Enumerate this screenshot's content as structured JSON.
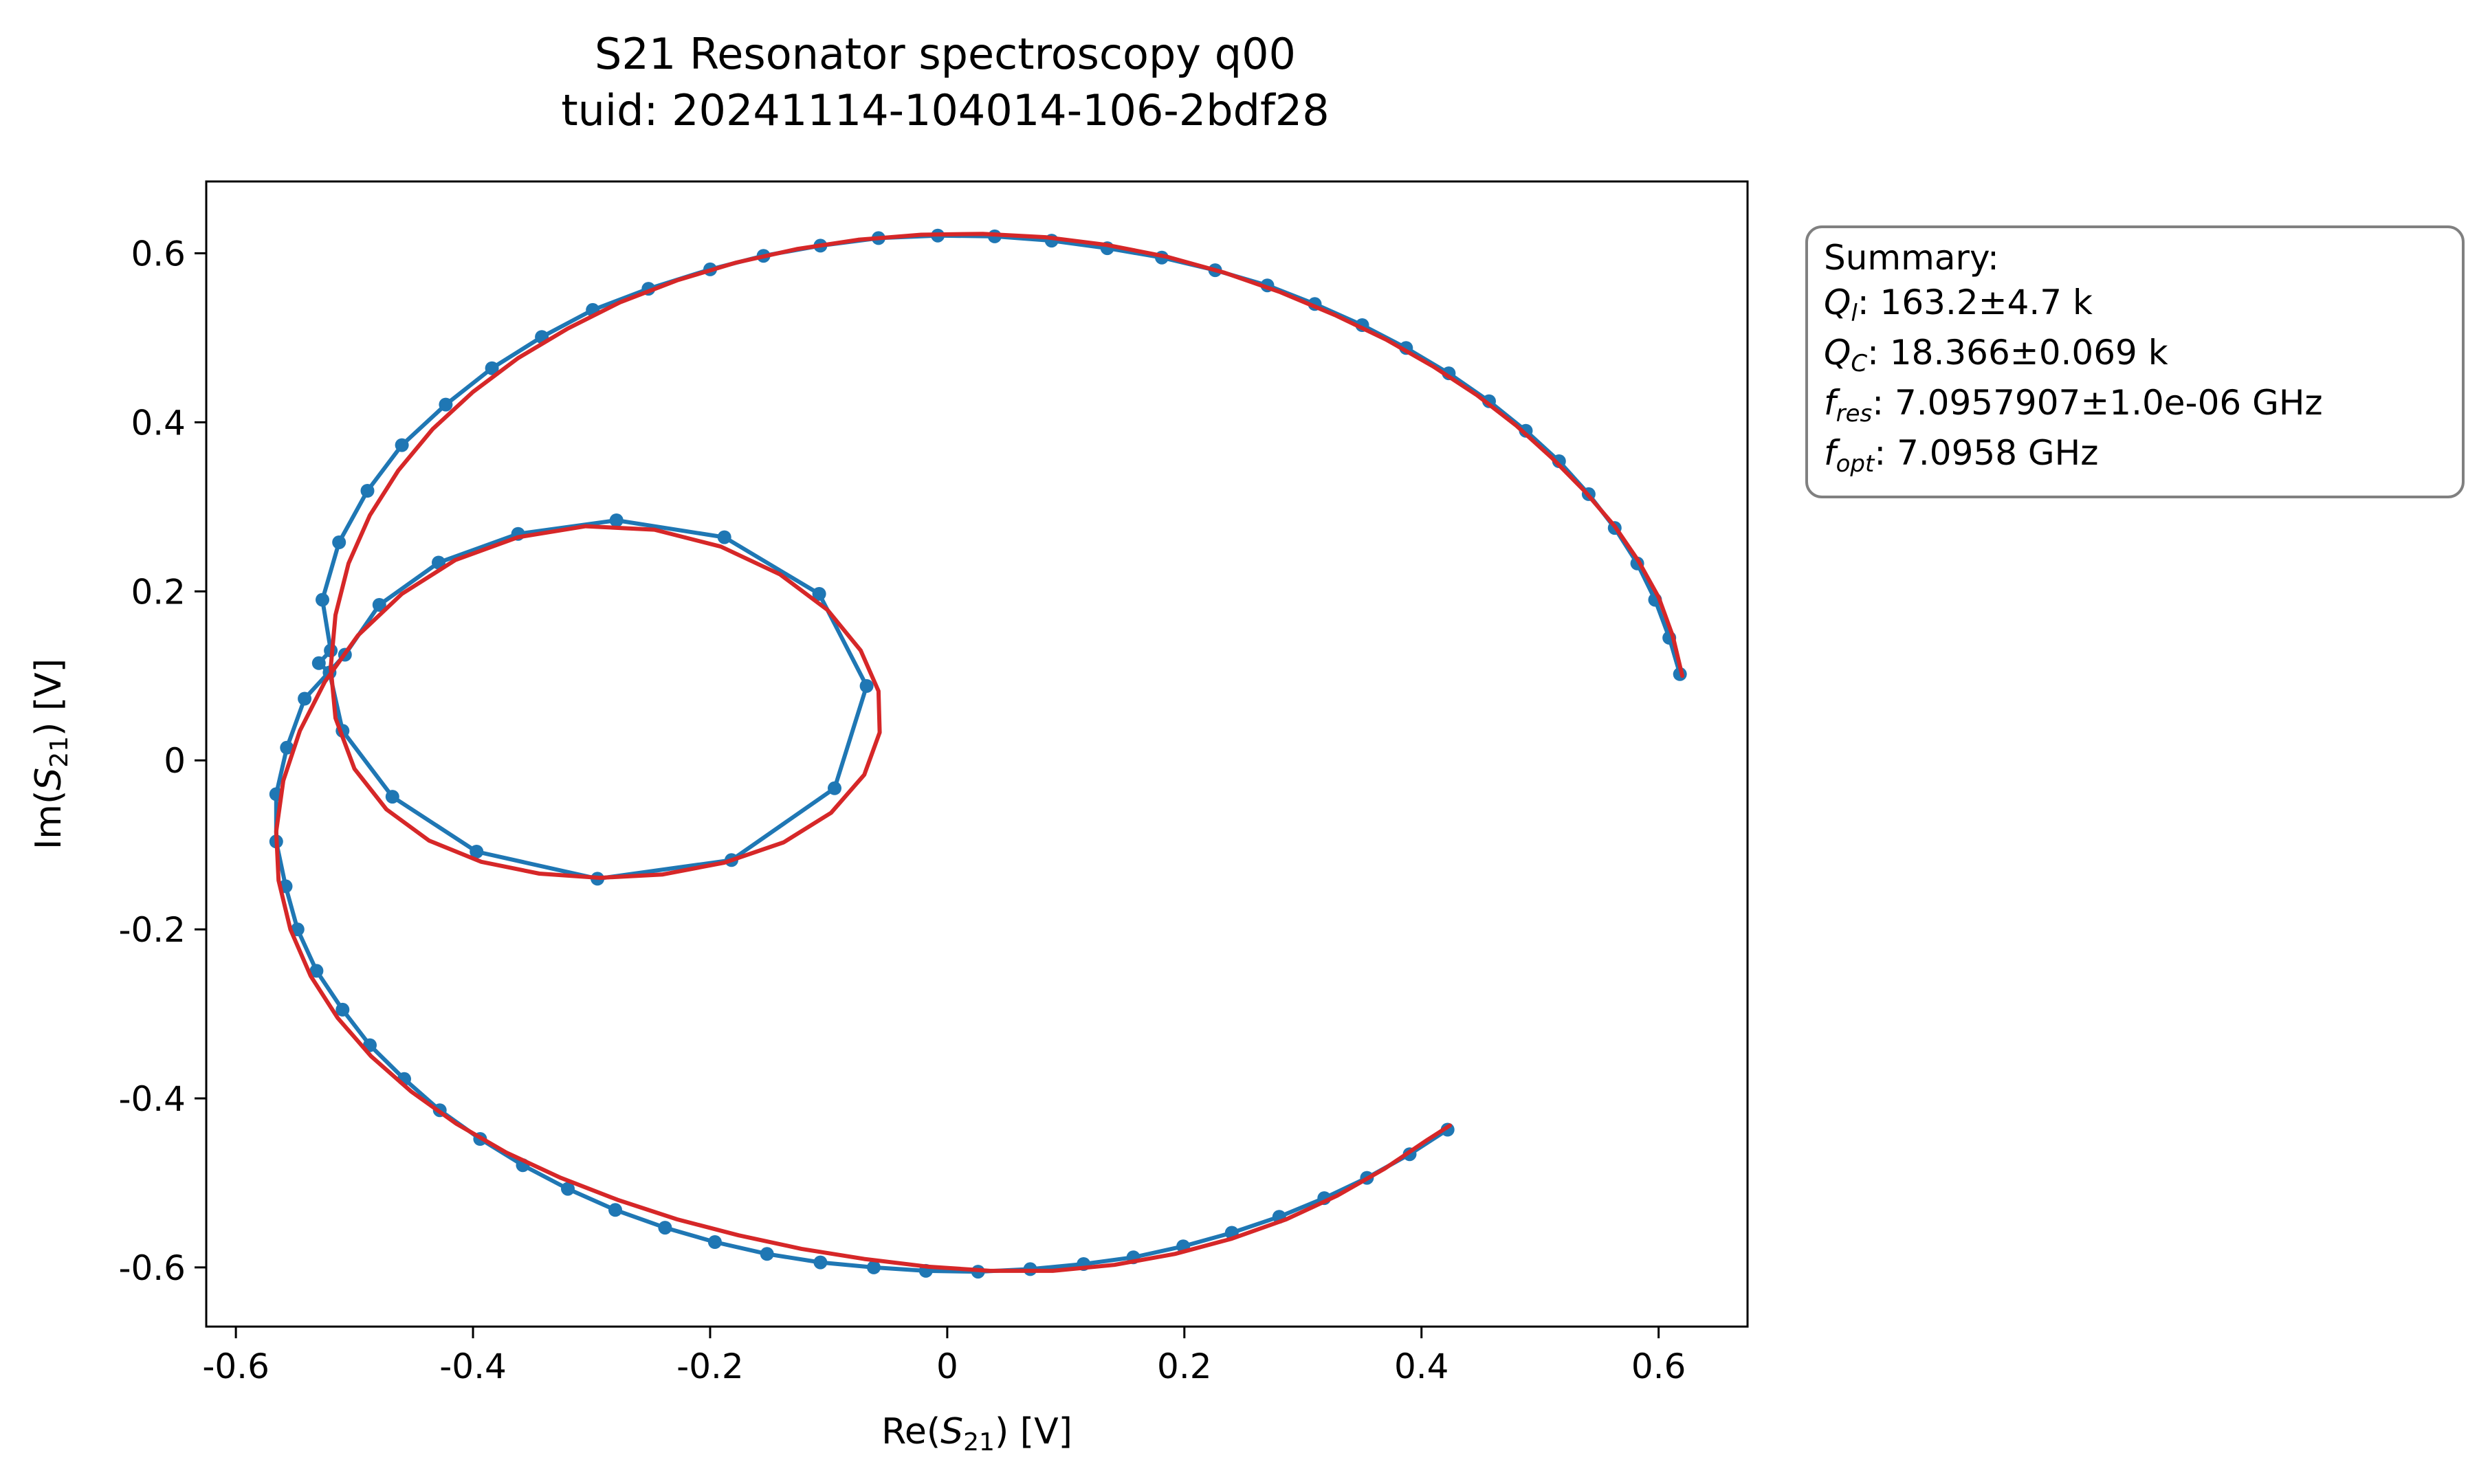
{
  "chart_data": {
    "type": "line",
    "title": "S21 Resonator spectroscopy q00",
    "subtitle": "tuid: 20241114-104014-106-2bdf28",
    "xlabel": {
      "prefix": "Re(",
      "var": "S",
      "sub": "21",
      "suffix": ") [V]"
    },
    "ylabel": {
      "prefix": "Im(",
      "var": "S",
      "sub": "21",
      "suffix": ") [V]"
    },
    "xlim": [
      -0.625,
      0.675
    ],
    "ylim": [
      -0.67,
      0.685
    ],
    "xticks": [
      -0.6,
      -0.4,
      -0.2,
      0,
      0.2,
      0.4,
      0.6
    ],
    "xtick_labels": [
      "-0.6",
      "-0.4",
      "-0.2",
      "0",
      "0.2",
      "0.4",
      "0.6"
    ],
    "yticks": [
      -0.6,
      -0.4,
      -0.2,
      0,
      0.2,
      0.4,
      0.6
    ],
    "ytick_labels": [
      "-0.6",
      "-0.4",
      "-0.2",
      "0",
      "0.2",
      "0.4",
      "0.6"
    ],
    "grid": false,
    "series": [
      {
        "color": "#1f77b4",
        "marker": "circle",
        "points": [
          [
            0.618,
            0.102
          ],
          [
            0.609,
            0.145
          ],
          [
            0.597,
            0.19
          ],
          [
            0.582,
            0.233
          ],
          [
            0.563,
            0.275
          ],
          [
            0.541,
            0.315
          ],
          [
            0.516,
            0.354
          ],
          [
            0.488,
            0.39
          ],
          [
            0.457,
            0.425
          ],
          [
            0.423,
            0.458
          ],
          [
            0.387,
            0.488
          ],
          [
            0.35,
            0.515
          ],
          [
            0.31,
            0.54
          ],
          [
            0.27,
            0.562
          ],
          [
            0.226,
            0.58
          ],
          [
            0.181,
            0.595
          ],
          [
            0.135,
            0.606
          ],
          [
            0.088,
            0.615
          ],
          [
            0.04,
            0.62
          ],
          [
            -0.008,
            0.621
          ],
          [
            -0.058,
            0.618
          ],
          [
            -0.107,
            0.609
          ],
          [
            -0.155,
            0.597
          ],
          [
            -0.2,
            0.581
          ],
          [
            -0.252,
            0.558
          ],
          [
            -0.299,
            0.533
          ],
          [
            -0.342,
            0.501
          ],
          [
            -0.384,
            0.464
          ],
          [
            -0.423,
            0.421
          ],
          [
            -0.46,
            0.373
          ],
          [
            -0.489,
            0.319
          ],
          [
            -0.513,
            0.258
          ],
          [
            -0.527,
            0.19
          ],
          [
            -0.52,
            0.13
          ],
          [
            -0.53,
            0.115
          ],
          [
            -0.521,
            0.104
          ],
          [
            -0.51,
            0.035
          ],
          [
            -0.468,
            -0.043
          ],
          [
            -0.397,
            -0.108
          ],
          [
            -0.295,
            -0.14
          ],
          [
            -0.182,
            -0.118
          ],
          [
            -0.095,
            -0.033
          ],
          [
            -0.068,
            0.088
          ],
          [
            -0.108,
            0.197
          ],
          [
            -0.188,
            0.264
          ],
          [
            -0.279,
            0.284
          ],
          [
            -0.362,
            0.268
          ],
          [
            -0.429,
            0.234
          ],
          [
            -0.479,
            0.184
          ],
          [
            -0.508,
            0.125
          ],
          [
            -0.542,
            0.073
          ],
          [
            -0.557,
            0.015
          ],
          [
            -0.566,
            -0.04
          ],
          [
            -0.566,
            -0.096
          ],
          [
            -0.558,
            -0.149
          ],
          [
            -0.548,
            -0.2
          ],
          [
            -0.532,
            -0.249
          ],
          [
            -0.51,
            -0.295
          ],
          [
            -0.487,
            -0.337
          ],
          [
            -0.458,
            -0.377
          ],
          [
            -0.428,
            -0.414
          ],
          [
            -0.394,
            -0.448
          ],
          [
            -0.358,
            -0.479
          ],
          [
            -0.32,
            -0.507
          ],
          [
            -0.28,
            -0.532
          ],
          [
            -0.238,
            -0.553
          ],
          [
            -0.196,
            -0.57
          ],
          [
            -0.152,
            -0.584
          ],
          [
            -0.107,
            -0.594
          ],
          [
            -0.062,
            -0.6
          ],
          [
            -0.018,
            -0.604
          ],
          [
            0.026,
            -0.605
          ],
          [
            0.07,
            -0.602
          ],
          [
            0.115,
            -0.596
          ],
          [
            0.157,
            -0.588
          ],
          [
            0.199,
            -0.575
          ],
          [
            0.24,
            -0.559
          ],
          [
            0.28,
            -0.54
          ],
          [
            0.318,
            -0.518
          ],
          [
            0.354,
            -0.494
          ],
          [
            0.39,
            -0.466
          ],
          [
            0.422,
            -0.437
          ]
        ]
      },
      {
        "color": "#d62728",
        "marker": "none",
        "points": [
          [
            0.62,
            0.1
          ],
          [
            0.612,
            0.147
          ],
          [
            0.6,
            0.193
          ],
          [
            0.583,
            0.236
          ],
          [
            0.563,
            0.277
          ],
          [
            0.538,
            0.318
          ],
          [
            0.51,
            0.358
          ],
          [
            0.48,
            0.396
          ],
          [
            0.447,
            0.432
          ],
          [
            0.41,
            0.466
          ],
          [
            0.37,
            0.498
          ],
          [
            0.327,
            0.527
          ],
          [
            0.281,
            0.554
          ],
          [
            0.234,
            0.577
          ],
          [
            0.185,
            0.596
          ],
          [
            0.134,
            0.61
          ],
          [
            0.083,
            0.619
          ],
          [
            0.03,
            0.623
          ],
          [
            -0.022,
            0.622
          ],
          [
            -0.075,
            0.616
          ],
          [
            -0.127,
            0.605
          ],
          [
            -0.178,
            0.589
          ],
          [
            -0.228,
            0.568
          ],
          [
            -0.276,
            0.542
          ],
          [
            -0.32,
            0.511
          ],
          [
            -0.362,
            0.476
          ],
          [
            -0.4,
            0.436
          ],
          [
            -0.434,
            0.392
          ],
          [
            -0.463,
            0.343
          ],
          [
            -0.487,
            0.29
          ],
          [
            -0.505,
            0.233
          ],
          [
            -0.516,
            0.172
          ],
          [
            -0.52,
            0.11
          ],
          [
            -0.516,
            0.05
          ],
          [
            -0.5,
            -0.01
          ],
          [
            -0.473,
            -0.058
          ],
          [
            -0.437,
            -0.095
          ],
          [
            -0.393,
            -0.12
          ],
          [
            -0.344,
            -0.134
          ],
          [
            -0.293,
            -0.139
          ],
          [
            -0.24,
            -0.135
          ],
          [
            -0.188,
            -0.121
          ],
          [
            -0.138,
            -0.097
          ],
          [
            -0.098,
            -0.062
          ],
          [
            -0.07,
            -0.017
          ],
          [
            -0.057,
            0.033
          ],
          [
            -0.058,
            0.082
          ],
          [
            -0.073,
            0.13
          ],
          [
            -0.101,
            0.178
          ],
          [
            -0.141,
            0.22
          ],
          [
            -0.191,
            0.253
          ],
          [
            -0.247,
            0.273
          ],
          [
            -0.305,
            0.277
          ],
          [
            -0.362,
            0.264
          ],
          [
            -0.415,
            0.237
          ],
          [
            -0.46,
            0.197
          ],
          [
            -0.497,
            0.148
          ],
          [
            -0.525,
            0.093
          ],
          [
            -0.546,
            0.035
          ],
          [
            -0.56,
            -0.024
          ],
          [
            -0.566,
            -0.084
          ],
          [
            -0.564,
            -0.142
          ],
          [
            -0.554,
            -0.2
          ],
          [
            -0.537,
            -0.255
          ],
          [
            -0.514,
            -0.305
          ],
          [
            -0.486,
            -0.35
          ],
          [
            -0.452,
            -0.392
          ],
          [
            -0.414,
            -0.43
          ],
          [
            -0.372,
            -0.464
          ],
          [
            -0.326,
            -0.494
          ],
          [
            -0.278,
            -0.52
          ],
          [
            -0.228,
            -0.543
          ],
          [
            -0.176,
            -0.562
          ],
          [
            -0.123,
            -0.578
          ],
          [
            -0.07,
            -0.59
          ],
          [
            -0.017,
            -0.599
          ],
          [
            0.036,
            -0.604
          ],
          [
            0.089,
            -0.604
          ],
          [
            0.141,
            -0.597
          ],
          [
            0.192,
            -0.584
          ],
          [
            0.24,
            -0.566
          ],
          [
            0.286,
            -0.543
          ],
          [
            0.329,
            -0.515
          ],
          [
            0.369,
            -0.483
          ],
          [
            0.405,
            -0.449
          ],
          [
            0.424,
            -0.432
          ]
        ]
      }
    ],
    "summary": {
      "title": "Summary:",
      "lines": [
        {
          "sym": "Q",
          "sub": "l",
          "text": ": 163.2±4.7 k"
        },
        {
          "sym": "Q",
          "sub": "C",
          "text": ": 18.366±0.069 k"
        },
        {
          "sym": "f",
          "sub": "res",
          "text": ": 7.0957907±1.0e-06 GHz"
        },
        {
          "sym": "f",
          "sub": "opt",
          "text": ": 7.0958 GHz"
        }
      ]
    }
  }
}
